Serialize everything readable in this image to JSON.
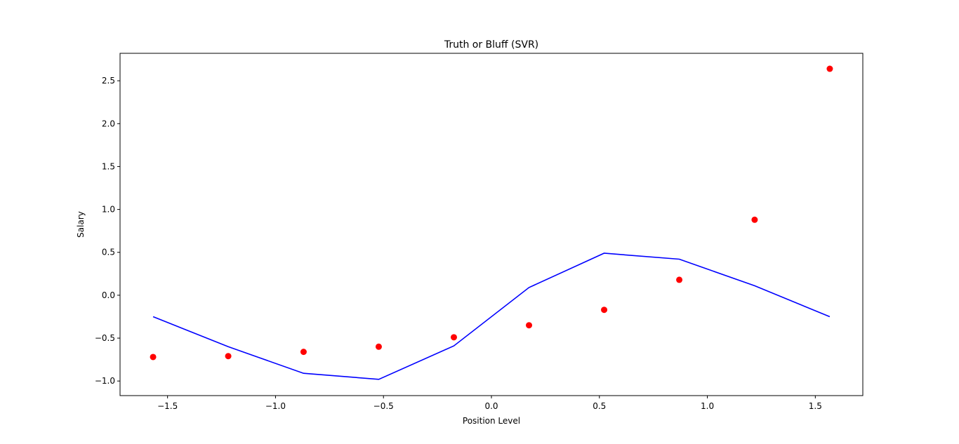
{
  "chart_data": {
    "type": "scatter",
    "title": "Truth or Bluff (SVR)",
    "xlabel": "Position Level",
    "ylabel": "Salary",
    "xlim": [
      -1.72,
      1.72
    ],
    "ylim": [
      -1.17,
      2.82
    ],
    "xticks": [
      -1.5,
      -1.0,
      -0.5,
      0.0,
      0.5,
      1.0,
      1.5
    ],
    "xtick_labels": [
      "−1.5",
      "−1.0",
      "−0.5",
      "0.0",
      "0.5",
      "1.0",
      "1.5"
    ],
    "yticks": [
      -1.0,
      -0.5,
      0.0,
      0.5,
      1.0,
      1.5,
      2.0,
      2.5
    ],
    "ytick_labels": [
      "−1.0",
      "−0.5",
      "0.0",
      "0.5",
      "1.0",
      "1.5",
      "2.0",
      "2.5"
    ],
    "grid": false,
    "series": [
      {
        "kind": "scatter",
        "color": "#ff0000",
        "x": [
          -1.567,
          -1.219,
          -0.87,
          -0.522,
          -0.174,
          0.174,
          0.522,
          0.87,
          1.219,
          1.567
        ],
        "y": [
          -0.72,
          -0.71,
          -0.66,
          -0.6,
          -0.49,
          -0.35,
          -0.17,
          0.18,
          0.88,
          2.64
        ]
      },
      {
        "kind": "line",
        "color": "#0000ff",
        "x": [
          -1.567,
          -1.219,
          -0.87,
          -0.522,
          -0.174,
          0.174,
          0.522,
          0.87,
          1.219,
          1.567
        ],
        "y": [
          -0.25,
          -0.6,
          -0.91,
          -0.98,
          -0.59,
          0.09,
          0.49,
          0.42,
          0.11,
          -0.25
        ]
      }
    ]
  }
}
